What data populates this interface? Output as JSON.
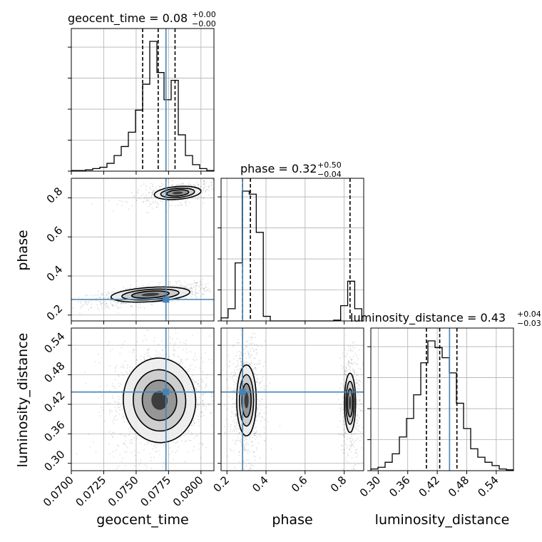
{
  "chart_data": {
    "type": "corner",
    "truth_color": "#4682b4",
    "grid": true,
    "parameters": [
      {
        "key": "geocent_time",
        "label": "geocent_time",
        "median": "0.08",
        "upper": "+0.00",
        "lower": "−0.00",
        "range": [
          0.07,
          0.081
        ],
        "ticks": [
          0.07,
          0.0725,
          0.075,
          0.0775,
          0.08
        ],
        "tick_labels": [
          "0.0700",
          "0.0725",
          "0.0750",
          "0.0775",
          "0.0800"
        ],
        "quantiles": [
          0.0755,
          0.0767,
          0.078
        ],
        "truth": 0.0773
      },
      {
        "key": "phase",
        "label": "phase",
        "median": "0.32",
        "upper": "+0.50",
        "lower": "−0.04",
        "range": [
          0.17,
          0.9
        ],
        "ticks": [
          0.2,
          0.4,
          0.6,
          0.8
        ],
        "tick_labels": [
          "0.2",
          "0.4",
          "0.6",
          "0.8"
        ],
        "quantiles": [
          0.28,
          0.32,
          0.83
        ],
        "truth": 0.28
      },
      {
        "key": "luminosity_distance",
        "label": "luminosity_distance",
        "median": "0.43",
        "upper": "+0.04",
        "lower": "−0.03",
        "range": [
          0.285,
          0.575
        ],
        "ticks": [
          0.3,
          0.36,
          0.42,
          0.48,
          0.54
        ],
        "tick_labels": [
          "0.30",
          "0.36",
          "0.42",
          "0.48",
          "0.54"
        ],
        "quantiles": [
          0.398,
          0.425,
          0.46
        ],
        "truth": 0.445
      }
    ],
    "histograms": [
      {
        "param": "geocent_time",
        "edges": [
          0.07,
          0.07055,
          0.0711,
          0.07165,
          0.0722,
          0.07275,
          0.0733,
          0.07385,
          0.0744,
          0.07495,
          0.0755,
          0.07605,
          0.0766,
          0.07715,
          0.0777,
          0.07825,
          0.0788,
          0.07935,
          0.0799,
          0.08045,
          0.081
        ],
        "values": [
          0.5,
          0.5,
          1,
          2,
          3,
          6,
          12,
          19,
          30,
          47,
          67,
          100,
          76,
          55,
          70,
          28,
          12,
          5,
          2,
          0.5
        ]
      },
      {
        "param": "phase",
        "edges": [
          0.17,
          0.206,
          0.242,
          0.278,
          0.314,
          0.35,
          0.386,
          0.422,
          0.458,
          0.494,
          0.53,
          0.566,
          0.602,
          0.638,
          0.674,
          0.71,
          0.746,
          0.782,
          0.818,
          0.854,
          0.89
        ],
        "values": [
          2,
          8,
          38,
          85,
          83,
          58,
          3,
          0,
          0,
          0,
          0,
          0,
          0,
          0,
          0,
          0,
          0.5,
          10,
          26,
          8
        ]
      },
      {
        "param": "luminosity_distance",
        "edges": [
          0.285,
          0.2995,
          0.314,
          0.3285,
          0.343,
          0.3575,
          0.372,
          0.3865,
          0.401,
          0.4155,
          0.43,
          0.4445,
          0.459,
          0.4735,
          0.488,
          0.5025,
          0.517,
          0.5315,
          0.546,
          0.5605,
          0.575
        ],
        "values": [
          1,
          2,
          5,
          10,
          20,
          31,
          45,
          64,
          77,
          73,
          67,
          58,
          40,
          25,
          13,
          8,
          5,
          3,
          1,
          0.5
        ]
      }
    ],
    "posterior_modes": [
      {
        "x": "geocent_time",
        "y": "phase",
        "clusters": [
          {
            "cx": 0.0761,
            "cy": 0.305,
            "sx": 0.0015,
            "sy": 0.018,
            "rho": 0.6,
            "w": 0.68
          },
          {
            "cx": 0.0782,
            "cy": 0.825,
            "sx": 0.0011,
            "sy": 0.02,
            "rho": 0.5,
            "w": 0.32
          }
        ]
      },
      {
        "x": "geocent_time",
        "y": "luminosity_distance",
        "clusters": [
          {
            "cx": 0.0768,
            "cy": 0.428,
            "sx": 0.0012,
            "sy": 0.037,
            "rho": 0.1,
            "w": 1.0
          }
        ]
      },
      {
        "x": "phase",
        "y": "luminosity_distance",
        "clusters": [
          {
            "cx": 0.3,
            "cy": 0.428,
            "sx": 0.025,
            "sy": 0.036,
            "rho": 0.0,
            "w": 0.65
          },
          {
            "cx": 0.83,
            "cy": 0.423,
            "sx": 0.017,
            "sy": 0.036,
            "rho": 0.0,
            "w": 0.35
          }
        ]
      }
    ]
  }
}
